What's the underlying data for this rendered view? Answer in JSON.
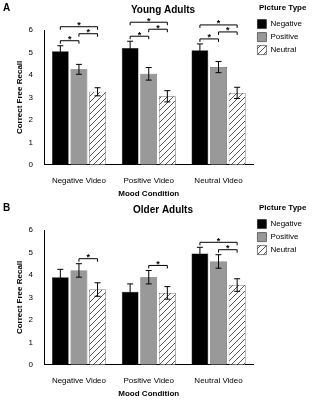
{
  "chart_data": [
    {
      "type": "bar",
      "title": "Young Adults",
      "x_label": "Mood Condition",
      "y_label": "Correct Free Recall",
      "categories": [
        "Negative Video",
        "Positive Video",
        "Neutral Video"
      ],
      "series": [
        {
          "name": "Negative",
          "color": "#000000",
          "values": [
            5.05,
            5.2,
            5.1
          ],
          "errors": [
            0.25,
            0.3,
            0.28
          ]
        },
        {
          "name": "Positive",
          "color": "#999999",
          "values": [
            4.25,
            4.05,
            4.35
          ],
          "errors": [
            0.22,
            0.28,
            0.25
          ]
        },
        {
          "name": "Neutral",
          "color": "#555555",
          "line_style": "hatched",
          "values": [
            3.25,
            3.05,
            3.2
          ],
          "errors": [
            0.18,
            0.25,
            0.25
          ]
        }
      ],
      "ylim": [
        0,
        6
      ],
      "yticks": [
        0,
        1,
        2,
        3,
        4,
        5,
        6
      ],
      "grid": false,
      "legend": "top right",
      "legend_title": "Picture Type",
      "annotations": [
        {
          "text": "A"
        },
        {
          "text": "*",
          "category": "Negative Video",
          "from": "Negative",
          "to": "Neutral"
        },
        {
          "text": "*",
          "category": "Negative Video",
          "from": "Negative",
          "to": "Positive"
        },
        {
          "text": "*",
          "category": "Negative Video",
          "from": "Positive",
          "to": "Neutral"
        },
        {
          "text": "*",
          "category": "Positive Video",
          "from": "Negative",
          "to": "Neutral"
        },
        {
          "text": "*",
          "category": "Positive Video",
          "from": "Negative",
          "to": "Positive"
        },
        {
          "text": "*",
          "category": "Positive Video",
          "from": "Positive",
          "to": "Neutral"
        },
        {
          "text": "*",
          "category": "Neutral Video",
          "from": "Negative",
          "to": "Neutral"
        },
        {
          "text": "*",
          "category": "Neutral Video",
          "from": "Negative",
          "to": "Positive"
        },
        {
          "text": "*",
          "category": "Neutral Video",
          "from": "Positive",
          "to": "Neutral"
        }
      ]
    },
    {
      "type": "bar",
      "title": "Older Adults",
      "x_label": "Mood Condition",
      "y_label": "Correct Free Recall",
      "categories": [
        "Negative Video",
        "Positive Video",
        "Neutral Video"
      ],
      "series": [
        {
          "name": "Negative",
          "color": "#000000",
          "values": [
            3.9,
            3.25,
            4.95
          ],
          "errors": [
            0.35,
            0.35,
            0.28
          ]
        },
        {
          "name": "Positive",
          "color": "#999999",
          "values": [
            4.2,
            3.9,
            4.6
          ],
          "errors": [
            0.3,
            0.3,
            0.3
          ]
        },
        {
          "name": "Neutral",
          "color": "#555555",
          "line_style": "hatched",
          "values": [
            3.35,
            3.2,
            3.55
          ],
          "errors": [
            0.3,
            0.28,
            0.28
          ]
        }
      ],
      "ylim": [
        0,
        6
      ],
      "yticks": [
        0,
        1,
        2,
        3,
        4,
        5,
        6
      ],
      "grid": false,
      "legend": "top right",
      "legend_title": "Picture Type",
      "annotations": [
        {
          "text": "B"
        },
        {
          "text": "*",
          "category": "Negative Video",
          "from": "Positive",
          "to": "Neutral"
        },
        {
          "text": "*",
          "category": "Positive Video",
          "from": "Positive",
          "to": "Neutral"
        },
        {
          "text": "*",
          "category": "Neutral Video",
          "from": "Negative",
          "to": "Neutral"
        },
        {
          "text": "*",
          "category": "Neutral Video",
          "from": "Positive",
          "to": "Neutral"
        }
      ]
    }
  ]
}
